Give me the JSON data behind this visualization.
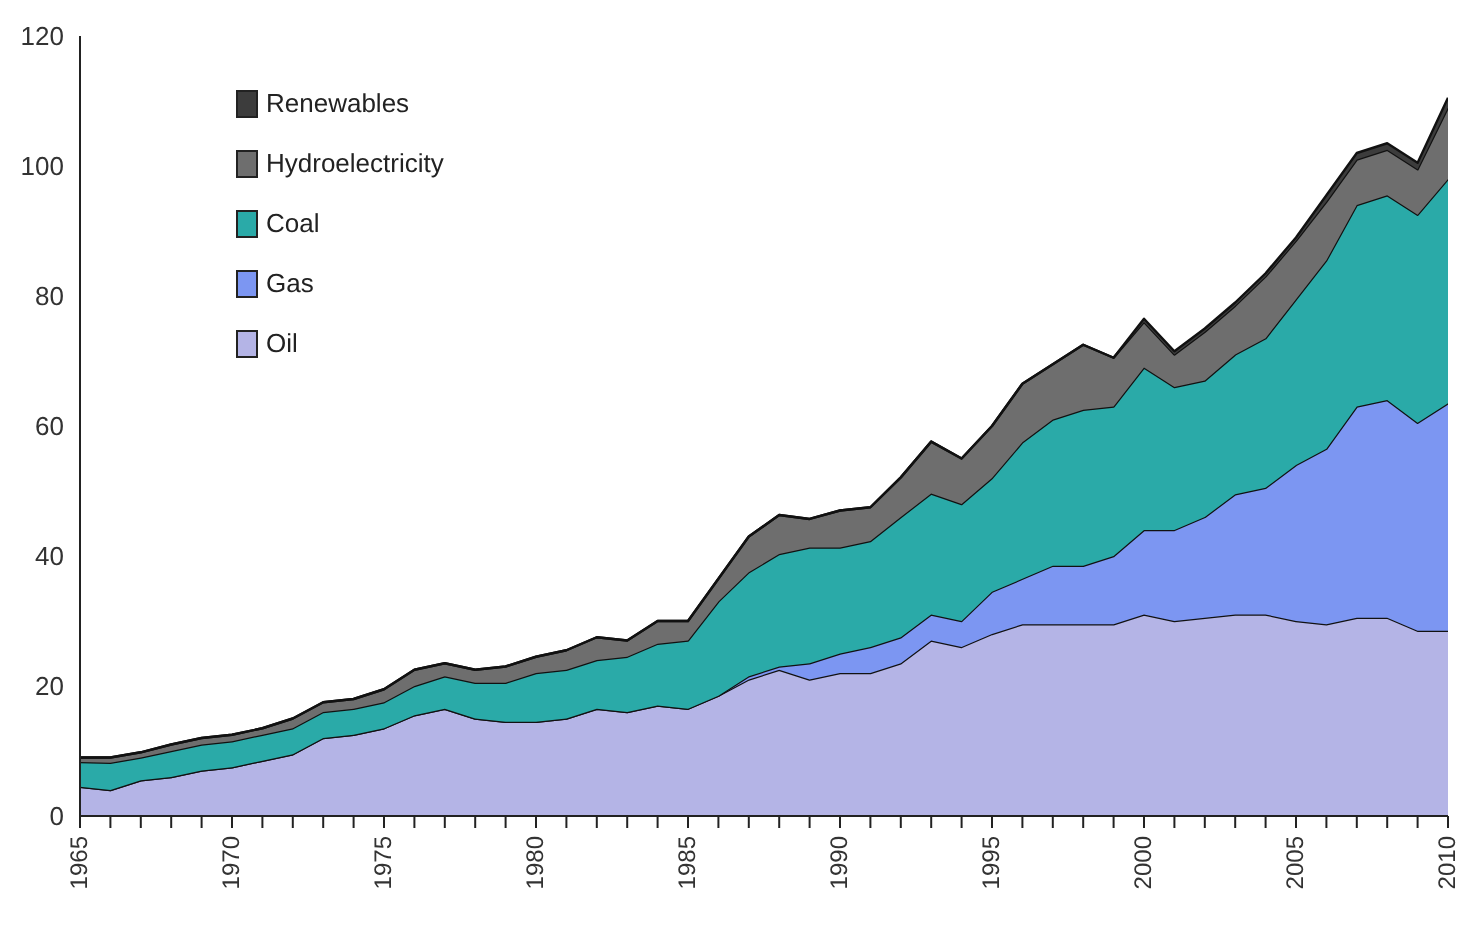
{
  "chart_data": {
    "type": "area",
    "stacked": true,
    "x": [
      1965,
      1966,
      1967,
      1968,
      1969,
      1970,
      1971,
      1972,
      1973,
      1974,
      1975,
      1976,
      1977,
      1978,
      1979,
      1980,
      1981,
      1982,
      1983,
      1984,
      1985,
      1986,
      1987,
      1988,
      1989,
      1990,
      1991,
      1992,
      1993,
      1994,
      1995,
      1996,
      1997,
      1998,
      1999,
      2000,
      2001,
      2002,
      2003,
      2004,
      2005,
      2006,
      2007,
      2008,
      2009,
      2010
    ],
    "series": [
      {
        "name": "Oil",
        "color": "#b4b4e6",
        "values": [
          4.5,
          4,
          5.5,
          6,
          7,
          7.5,
          8.5,
          9.5,
          12,
          12.5,
          13.5,
          15.5,
          16.5,
          15,
          14.5,
          14.5,
          15,
          16.5,
          16,
          17,
          16.5,
          18.5,
          21,
          22.5,
          21,
          22,
          22,
          23.5,
          27,
          26,
          28,
          29.5,
          29.5,
          29.5,
          29.5,
          31,
          30,
          30.5,
          31,
          31,
          30,
          29.5,
          30.5,
          30.5,
          28.5,
          28.5
        ]
      },
      {
        "name": "Gas",
        "color": "#7c96f2",
        "values": [
          0,
          0,
          0,
          0,
          0,
          0,
          0,
          0,
          0,
          0,
          0,
          0,
          0,
          0,
          0,
          0,
          0,
          0,
          0,
          0,
          0,
          0,
          0.5,
          0.5,
          2.5,
          3,
          4,
          4,
          4,
          4,
          6.5,
          7,
          9,
          9,
          10.5,
          13,
          14,
          15.5,
          18.5,
          19.5,
          24,
          27,
          32.5,
          33.5,
          32,
          35
        ]
      },
      {
        "name": "Coal",
        "color": "#2aaaa8",
        "values": [
          3.8,
          4.2,
          3.5,
          4,
          4,
          4,
          4,
          4,
          4,
          4,
          4,
          4.5,
          5,
          5.5,
          6,
          7.5,
          7.5,
          7.5,
          8.5,
          9.5,
          10.5,
          14.5,
          16,
          17.3,
          17.8,
          16.3,
          16.3,
          18.5,
          18.6,
          18,
          17.5,
          21,
          22.5,
          24,
          23,
          25,
          22,
          21,
          21.5,
          23,
          25.5,
          29,
          31,
          31.5,
          32,
          34.5
        ]
      },
      {
        "name": "Hydroelectricity",
        "color": "#6e6e6e",
        "values": [
          0.7,
          0.8,
          0.8,
          1,
          1,
          1,
          1,
          1.5,
          1.5,
          1.5,
          2,
          2.5,
          2,
          2,
          2.5,
          2.5,
          3,
          3.5,
          2.5,
          3.5,
          3,
          3.5,
          5.5,
          6,
          4.4,
          5.7,
          5.2,
          6.1,
          8,
          7,
          8,
          9,
          8.5,
          10,
          7.5,
          7,
          5,
          7.5,
          7.5,
          9.5,
          9,
          9,
          7,
          7,
          7,
          11
        ]
      },
      {
        "name": "Renewables",
        "color": "#3c3c3c",
        "values": [
          0,
          0,
          0,
          0,
          0,
          0,
          0,
          0,
          0,
          0,
          0,
          0,
          0,
          0,
          0,
          0,
          0,
          0,
          0,
          0,
          0,
          0,
          0,
          0,
          0,
          0,
          0,
          0,
          0,
          0,
          0,
          0,
          0,
          0,
          0,
          0.5,
          0.5,
          0.5,
          0.5,
          0.5,
          0.5,
          1,
          1,
          1,
          1,
          1.5
        ]
      }
    ],
    "xlim": [
      1965,
      2010
    ],
    "xticks": [
      1965,
      1970,
      1975,
      1980,
      1985,
      1990,
      1995,
      2000,
      2005,
      2010
    ],
    "ylim": [
      0,
      120
    ],
    "yticks": [
      0,
      20,
      40,
      60,
      80,
      100,
      120
    ],
    "grid": false,
    "legend": "top left"
  }
}
